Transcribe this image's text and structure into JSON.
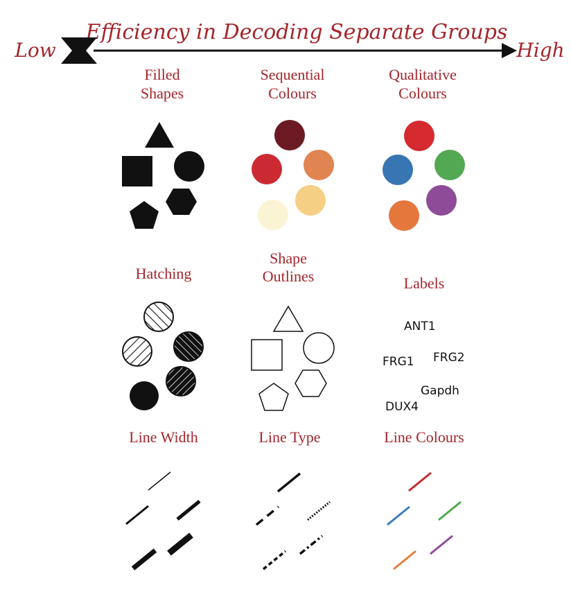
{
  "header": {
    "title": "Efficiency in Decoding Separate Groups",
    "low_label": "Low",
    "high_label": "High"
  },
  "panels": {
    "filled_shapes": {
      "title_line1": "Filled",
      "title_line2": "Shapes"
    },
    "sequential_colours": {
      "title_line1": "Sequential",
      "title_line2": "Colours",
      "colors": [
        "#6b1a24",
        "#cc2a33",
        "#e08551",
        "#f5cf84",
        "#fbf4d4"
      ]
    },
    "qualitative_colours": {
      "title_line1": "Qualitative",
      "title_line2": "Colours",
      "colors": [
        "#d42a30",
        "#3776b3",
        "#53a853",
        "#8e4b98",
        "#e5773d"
      ]
    },
    "hatching": {
      "title": "Hatching"
    },
    "shape_outlines": {
      "title_line1": "Shape",
      "title_line2": "Outlines"
    },
    "labels": {
      "title": "Labels",
      "items": [
        "ANT1",
        "FRG1",
        "FRG2",
        "Gapdh",
        "DUX4"
      ]
    },
    "line_width": {
      "title": "Line Width"
    },
    "line_type": {
      "title": "Line Type"
    },
    "line_colours": {
      "title": "Line Colours",
      "colors": [
        "#c8282e",
        "#3a7bbd",
        "#4da84b",
        "#e27f3f",
        "#8e4b98"
      ]
    }
  },
  "colors": {
    "title_text": "#a5252b",
    "ink": "#111111"
  }
}
